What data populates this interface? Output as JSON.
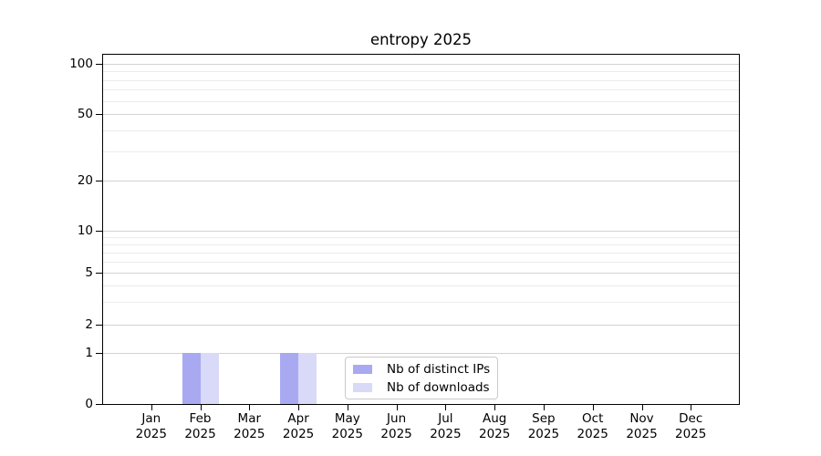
{
  "title": "entropy 2025",
  "colors": {
    "distinct_ips": "#a9a9f1",
    "downloads": "#d9d9f8",
    "grid_major": "#d2d2d2",
    "grid_minor": "#ececec",
    "spine": "#000000"
  },
  "legend": {
    "items": [
      {
        "label": "Nb of distinct IPs",
        "color_key": "distinct_ips"
      },
      {
        "label": "Nb of downloads",
        "color_key": "downloads"
      }
    ]
  },
  "chart_data": {
    "type": "bar",
    "title": "entropy 2025",
    "categories": [
      "Jan 2025",
      "Feb 2025",
      "Mar 2025",
      "Apr 2025",
      "May 2025",
      "Jun 2025",
      "Jul 2025",
      "Aug 2025",
      "Sep 2025",
      "Oct 2025",
      "Nov 2025",
      "Dec 2025"
    ],
    "series": [
      {
        "name": "Nb of distinct IPs",
        "color_key": "distinct_ips",
        "values": [
          0,
          1,
          0,
          1,
          0,
          0,
          0,
          0,
          0,
          0,
          0,
          0
        ]
      },
      {
        "name": "Nb of downloads",
        "color_key": "downloads",
        "values": [
          0,
          1,
          0,
          1,
          0,
          0,
          0,
          0,
          0,
          0,
          0,
          0
        ]
      }
    ],
    "yscale": "quasi-log",
    "y_ticks": [
      0,
      1,
      2,
      5,
      10,
      20,
      50,
      100
    ],
    "y_minor_ticks": [
      3,
      4,
      6,
      7,
      8,
      9,
      30,
      40,
      60,
      70,
      80,
      90
    ],
    "ylim": [
      0,
      110
    ],
    "xlabel": "",
    "ylabel": "",
    "grid": "horizontal",
    "legend_position": "lower center"
  }
}
